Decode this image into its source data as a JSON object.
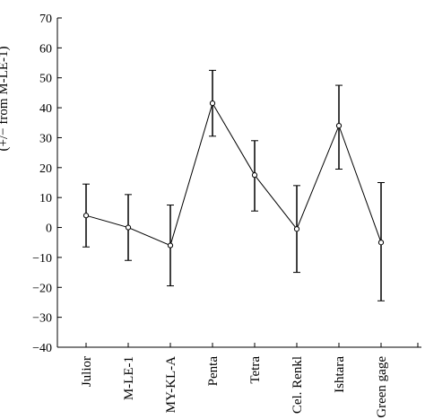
{
  "chart_data": {
    "type": "line",
    "ylabel": "(+/− from M-LE-1)",
    "ylim": [
      -40,
      70
    ],
    "yticks": [
      -40,
      -30,
      -20,
      -10,
      0,
      10,
      20,
      30,
      40,
      50,
      60,
      70
    ],
    "categories": [
      "Julior",
      "M-LE-1",
      "MY-KL-A",
      "Penta",
      "Tetra",
      "Cel. Renkl",
      "Ishtara",
      "Green gage"
    ],
    "series": [
      {
        "values": [
          4,
          0,
          -6,
          41.5,
          17.5,
          -0.5,
          34,
          -5
        ],
        "upper": [
          14.5,
          11,
          7.5,
          52.5,
          29,
          14,
          47.5,
          15
        ],
        "lower": [
          -6.5,
          -11,
          -19.5,
          30.5,
          5.5,
          -15,
          19.5,
          -24.5
        ]
      }
    ],
    "grid": false,
    "legend": "none"
  }
}
